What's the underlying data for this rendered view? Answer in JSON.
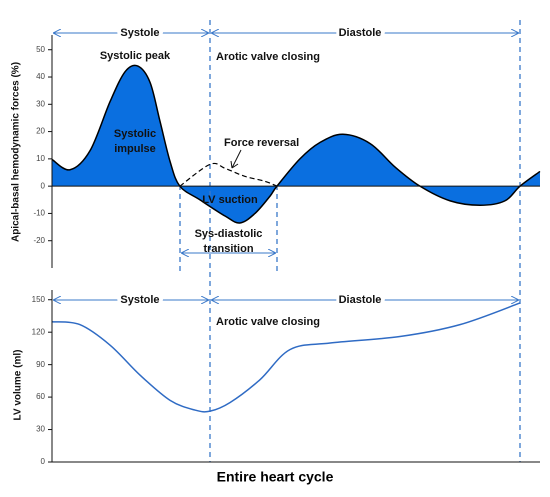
{
  "chart_data": [
    {
      "type": "area-line",
      "y_label": "Apical-basal  hemodynamic forces  (%)",
      "xlim": [
        0,
        100
      ],
      "ylim": [
        -30,
        55.4
      ],
      "yticks": [
        -20,
        -10,
        0,
        10,
        20,
        30,
        40,
        50
      ],
      "annotations": [
        "Systole",
        "Diastole",
        "Systolic peak",
        "Arotic valve closing",
        "Systolic impulse",
        "Force reversal",
        "LV suction",
        "Sys-diastolic transition"
      ],
      "series": [
        {
          "x": [
            0,
            3.7,
            7.8,
            11.9,
            15,
            17.6,
            20.1,
            22.1,
            24.2,
            26.2,
            30.3,
            35.5,
            38.5,
            41.6,
            44.7,
            46.1,
            50.8,
            54.9,
            59.6,
            65.2,
            70.3,
            75.4,
            81.6,
            87.7,
            92.8,
            95.9,
            100
          ],
          "values": [
            9.8,
            6,
            13,
            31,
            42,
            44,
            38,
            24,
            9,
            0,
            -5,
            -11,
            -13.5,
            -10,
            -3.6,
            0,
            10,
            16,
            19,
            15.6,
            7,
            0,
            -5.4,
            -7,
            -5.4,
            0,
            5.4
          ],
          "color": "#000000",
          "fill": "#0a6fe0"
        },
        {
          "x": [
            26.2,
            32.4,
            35.5,
            39.5,
            43.6,
            46.1
          ],
          "values": [
            0,
            8,
            6.5,
            3.6,
            1.8,
            0
          ],
          "color": "#000000",
          "dashed": true
        }
      ]
    },
    {
      "type": "line",
      "y_label": "LV volume  (ml)",
      "x_label": "Entire heart cycle",
      "xlim": [
        0,
        100
      ],
      "ylim": [
        0,
        159
      ],
      "yticks": [
        0,
        30,
        60,
        90,
        120,
        150
      ],
      "annotations": [
        "Systole",
        "Diastole",
        "Arotic valve closing"
      ],
      "series": [
        {
          "x": [
            0,
            5.7,
            11.9,
            18,
            24.2,
            29.3,
            32.4,
            36.5,
            42.6,
            48.8,
            57,
            71.3,
            83.6,
            95.9
          ],
          "values": [
            129.6,
            127,
            108,
            80.5,
            57,
            48,
            47,
            55,
            76,
            104,
            110,
            116,
            127,
            147
          ],
          "color": "#2f6bc4"
        }
      ]
    }
  ]
}
